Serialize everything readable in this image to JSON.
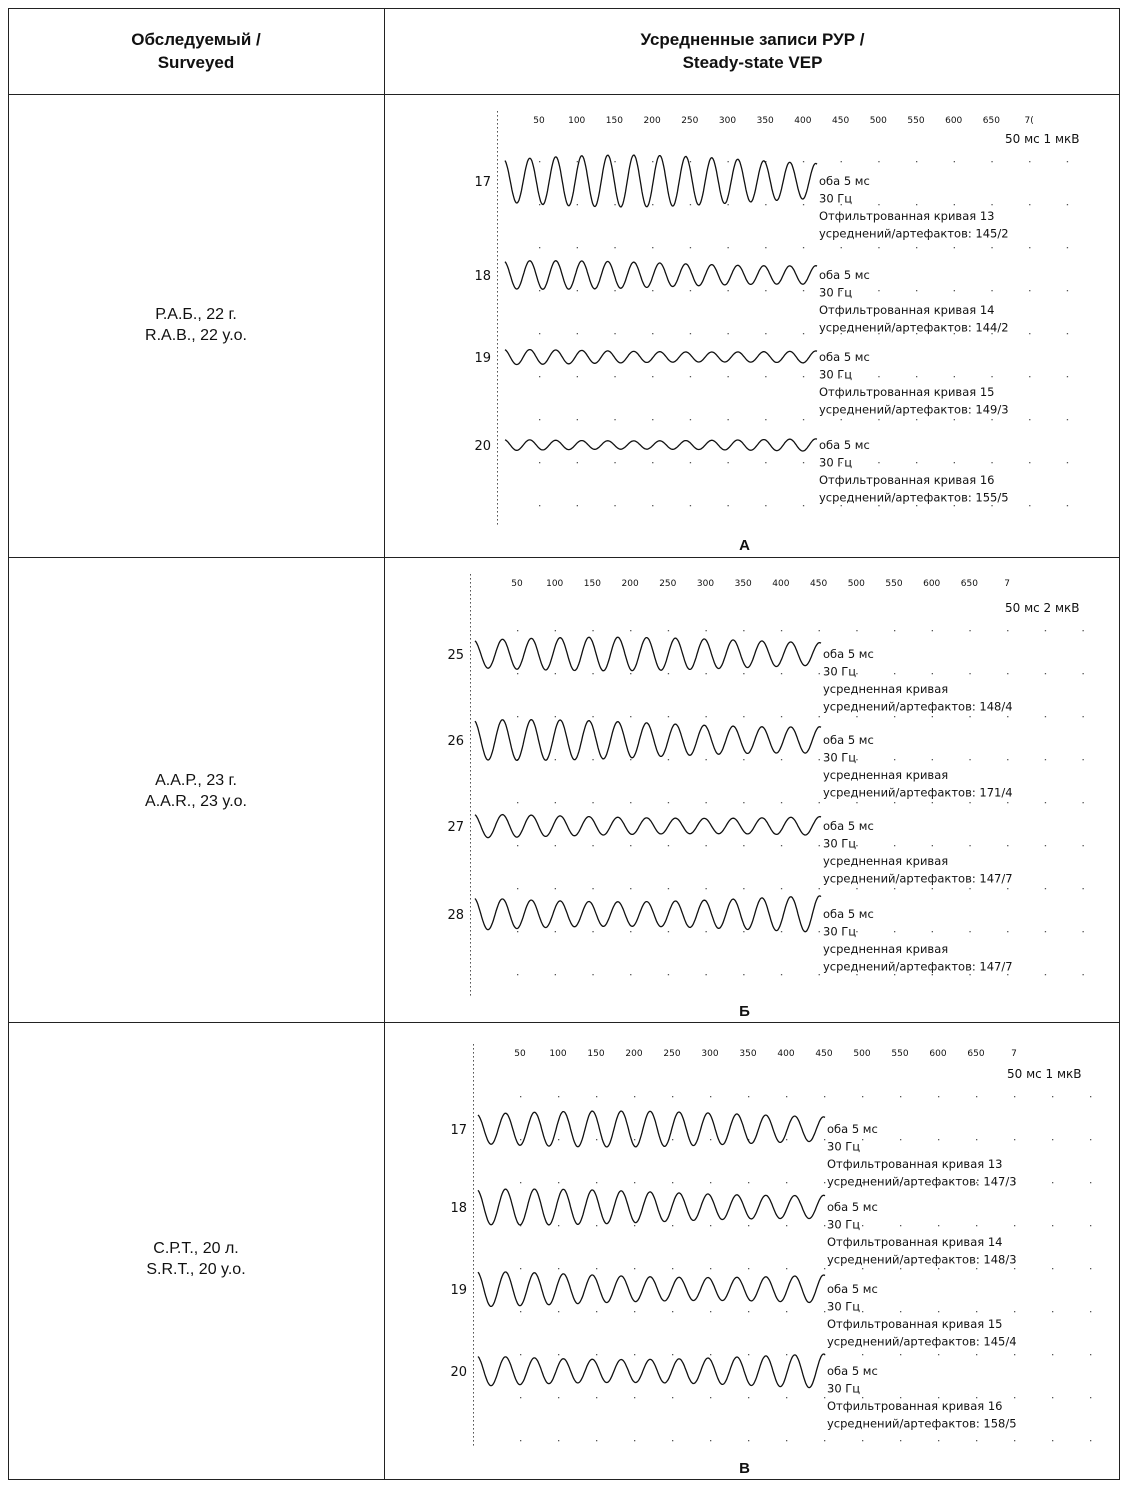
{
  "header": {
    "subject_ru": "Обследуемый /",
    "subject_en": "Surveyed",
    "records_ru": "Усредненные записи РУР /",
    "records_en": "Steady-state VEP"
  },
  "rows": [
    {
      "subject_ru": "Р.А.Б., 22 г.",
      "subject_en": "R.A.B., 22 y.o.",
      "panel_label": "А",
      "scale": "50 мс 1 мкВ",
      "ticks": [
        "50",
        "100",
        "150",
        "200",
        "250",
        "300",
        "350",
        "400",
        "450",
        "500",
        "550",
        "600",
        "650",
        "7("
      ],
      "channels": [
        {
          "num": "17",
          "amp": 1.0,
          "lines": [
            "оба 5 мс",
            "30 Гц",
            "Отфильтрованная кривая 13",
            "усреднений/артефактов: 145/2"
          ]
        },
        {
          "num": "18",
          "amp": 0.55,
          "lines": [
            "оба 5 мс",
            "30 Гц",
            "Отфильтрованная кривая 14",
            "усреднений/артефактов: 144/2"
          ]
        },
        {
          "num": "19",
          "amp": 0.3,
          "lines": [
            "оба 5 мс",
            "30 Гц",
            "Отфильтрованная кривая 15",
            "усреднений/артефактов: 149/3"
          ]
        },
        {
          "num": "20",
          "amp": 0.25,
          "lines": [
            "оба 5 мс",
            "30 Гц",
            "Отфильтрованная кривая 16",
            "усреднений/артефактов: 155/5"
          ]
        }
      ]
    },
    {
      "subject_ru": "А.А.Р., 23 г.",
      "subject_en": "A.A.R., 23 y.o.",
      "panel_label": "Б",
      "scale": "50 мс 2 мкВ",
      "ticks": [
        "50",
        "100",
        "150",
        "200",
        "250",
        "300",
        "350",
        "400",
        "450",
        "500",
        "550",
        "600",
        "650",
        "7"
      ],
      "channels": [
        {
          "num": "25",
          "amp": 0.7,
          "lines": [
            "оба 5 мс",
            "30 Гц",
            "усредненная кривая",
            "усреднений/артефактов: 148/4"
          ]
        },
        {
          "num": "26",
          "amp": 0.85,
          "lines": [
            "оба 5 мс",
            "30 Гц",
            "усредненная кривая",
            "усреднений/артефактов: 171/4"
          ]
        },
        {
          "num": "27",
          "amp": 0.5,
          "lines": [
            "оба 5 мс",
            "30 Гц",
            "усредненная кривая",
            "усреднений/артефактов: 147/7"
          ]
        },
        {
          "num": "28",
          "amp": 0.8,
          "lines": [
            "оба 5 мс",
            "30 Гц",
            "усредненная кривая",
            "усреднений/артефактов: 147/7"
          ]
        }
      ]
    },
    {
      "subject_ru": "С.Р.Т., 20 л.",
      "subject_en": "S.R.T., 20 y.o.",
      "panel_label": "В",
      "scale": "50 мс 1 мкВ",
      "ticks": [
        "50",
        "100",
        "150",
        "200",
        "250",
        "300",
        "350",
        "400",
        "450",
        "500",
        "550",
        "600",
        "650",
        "7"
      ],
      "channels": [
        {
          "num": "17",
          "amp": 0.75,
          "lines": [
            "оба 5 мс",
            "30 Гц",
            "Отфильтрованная кривая 13",
            "усреднений/артефактов: 147/3"
          ]
        },
        {
          "num": "18",
          "amp": 0.75,
          "lines": [
            "оба 5 мс",
            "30 Гц",
            "Отфильтрованная кривая 14",
            "усреднений/артефактов: 148/3"
          ]
        },
        {
          "num": "19",
          "amp": 0.75,
          "lines": [
            "оба 5 мс",
            "30 Гц",
            "Отфильтрованная кривая 15",
            "усреднений/артефактов: 145/4"
          ]
        },
        {
          "num": "20",
          "amp": 0.75,
          "lines": [
            "оба 5 мс",
            "30 Гц",
            "Отфильтрованная кривая 16",
            "усреднений/артефактов: 158/5"
          ]
        }
      ]
    }
  ]
}
